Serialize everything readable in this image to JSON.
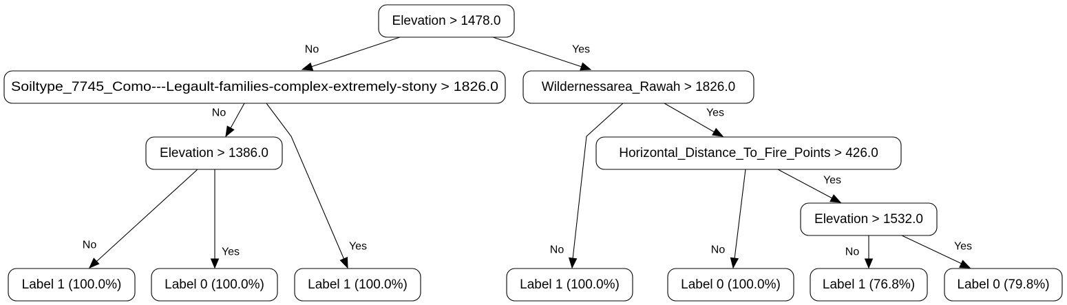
{
  "nodes": {
    "root": "Elevation > 1478.0",
    "soiltype": "Soiltype_7745_Como---Legault-families-complex-extremely-stony > 1826.0",
    "wilderness": "Wildernessarea_Rawah > 1826.0",
    "elevation_1386": "Elevation > 1386.0",
    "horizontal_distance": "Horizontal_Distance_To_Fire_Points > 426.0",
    "elevation_1532": "Elevation > 1532.0",
    "leaf_1": "Label 1 (100.0%)",
    "leaf_2": "Label 0 (100.0%)",
    "leaf_3": "Label 1 (100.0%)",
    "leaf_4": "Label 1 (100.0%)",
    "leaf_5": "Label 0 (100.0%)",
    "leaf_6": "Label 1 (76.8%)",
    "leaf_7": "Label 0 (79.8%)"
  },
  "edges": {
    "root_no": "No",
    "root_yes": "Yes",
    "soiltype_no": "No",
    "wilderness_yes": "Yes",
    "elevation_1386_no": "No",
    "elevation_1386_yes": "Yes",
    "soiltype_yes": "Yes",
    "wilderness_no": "No",
    "horizontal_distance_no": "No",
    "horizontal_distance_yes": "Yes",
    "elevation_1532_no": "No",
    "elevation_1532_yes": "Yes"
  }
}
